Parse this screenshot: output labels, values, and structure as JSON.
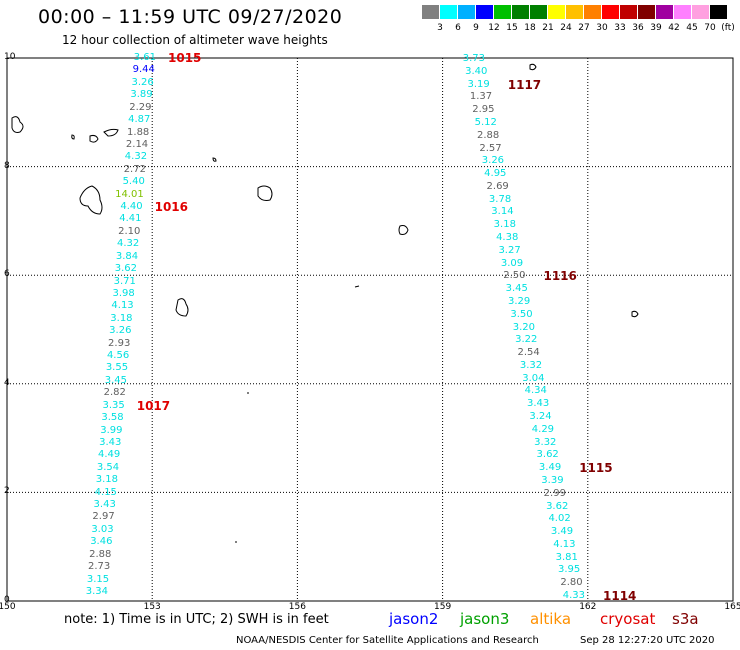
{
  "header": {
    "title": "00:00 – 11:59 UTC 09/27/2020",
    "subtitle": "12 hour collection of altimeter wave heights"
  },
  "color_scale": {
    "colors": [
      "#808080",
      "#00ffff",
      "#00b0ff",
      "#0000ff",
      "#00c000",
      "#008000",
      "#008000",
      "#ffff00",
      "#ffc000",
      "#ff8000",
      "#ff0000",
      "#c00000",
      "#800000",
      "#a000a0",
      "#ff80ff",
      "#ffa0e0",
      "#000000"
    ],
    "labels": [
      "3",
      "6",
      "9",
      "12",
      "15",
      "18",
      "21",
      "24",
      "27",
      "30",
      "33",
      "36",
      "39",
      "42",
      "45",
      "70",
      "(ft)"
    ]
  },
  "axes": {
    "x_ticks": [
      "150",
      "153",
      "156",
      "159",
      "162",
      "165"
    ],
    "y_ticks": [
      "10",
      "8",
      "6",
      "4",
      "2",
      "0"
    ]
  },
  "track_west": {
    "values": [
      "3.61",
      "9.44",
      "3.26",
      "3.89",
      "2.29",
      "4.87",
      "1.88",
      "2.14",
      "4.32",
      "2.72",
      "5.40",
      "14.01",
      "4.40",
      "4.41",
      "2.10",
      "4.32",
      "3.84",
      "3.62",
      "3.71",
      "3.98",
      "4.13",
      "3.18",
      "3.26",
      "2.93",
      "4.56",
      "3.55",
      "3.45",
      "2.82",
      "3.35",
      "3.58",
      "3.99",
      "3.43",
      "4.49",
      "3.54",
      "3.18",
      "4.15",
      "3.43",
      "2.97",
      "3.03",
      "3.46",
      "2.88",
      "2.73",
      "3.15",
      "3.34"
    ],
    "colors": [
      "#00e0e0",
      "#0000ff",
      "#00e0e0",
      "#00e0e0",
      "#606060",
      "#00e0e0",
      "#606060",
      "#606060",
      "#00e0e0",
      "#606060",
      "#00e0e0",
      "#80c000",
      "#00e0e0",
      "#00e0e0",
      "#606060",
      "#00e0e0",
      "#00e0e0",
      "#00e0e0",
      "#00e0e0",
      "#00e0e0",
      "#00e0e0",
      "#00e0e0",
      "#00e0e0",
      "#606060",
      "#00e0e0",
      "#00e0e0",
      "#00e0e0",
      "#606060",
      "#00e0e0",
      "#00e0e0",
      "#00e0e0",
      "#00e0e0",
      "#00e0e0",
      "#00e0e0",
      "#00e0e0",
      "#00e0e0",
      "#00e0e0",
      "#606060",
      "#00e0e0",
      "#00e0e0",
      "#606060",
      "#606060",
      "#00e0e0",
      "#00e0e0"
    ],
    "times": [
      "1015",
      "1016",
      "1017"
    ]
  },
  "track_east": {
    "values": [
      "3.73",
      "3.40",
      "3.19",
      "1.37",
      "2.95",
      "5.12",
      "2.88",
      "2.57",
      "3.26",
      "4.95",
      "2.69",
      "3.78",
      "3.14",
      "3.18",
      "4.38",
      "3.27",
      "3.09",
      "2.50",
      "3.45",
      "3.29",
      "3.50",
      "3.20",
      "3.22",
      "2.54",
      "3.32",
      "3.04",
      "4.34",
      "3.43",
      "3.24",
      "4.29",
      "3.32",
      "3.62",
      "3.49",
      "3.39",
      "2.99",
      "3.62",
      "4.02",
      "3.49",
      "4.13",
      "3.81",
      "3.95",
      "2.80",
      "4.33"
    ],
    "colors": [
      "#00e0e0",
      "#00e0e0",
      "#00e0e0",
      "#606060",
      "#606060",
      "#00e0e0",
      "#606060",
      "#606060",
      "#00e0e0",
      "#00e0e0",
      "#606060",
      "#00e0e0",
      "#00e0e0",
      "#00e0e0",
      "#00e0e0",
      "#00e0e0",
      "#00e0e0",
      "#606060",
      "#00e0e0",
      "#00e0e0",
      "#00e0e0",
      "#00e0e0",
      "#00e0e0",
      "#606060",
      "#00e0e0",
      "#00e0e0",
      "#00e0e0",
      "#00e0e0",
      "#00e0e0",
      "#00e0e0",
      "#00e0e0",
      "#00e0e0",
      "#00e0e0",
      "#00e0e0",
      "#606060",
      "#00e0e0",
      "#00e0e0",
      "#00e0e0",
      "#00e0e0",
      "#00e0e0",
      "#00e0e0",
      "#606060",
      "#00e0e0"
    ],
    "times": [
      "1117",
      "1116",
      "1115",
      "1114"
    ]
  },
  "time_colors": {
    "west": "#e00000",
    "east": "#800000"
  },
  "footer": {
    "note": "note: 1) Time is in UTC; 2) SWH is in feet",
    "satellites": [
      {
        "name": "jason2",
        "color": "#0000ff"
      },
      {
        "name": "jason3",
        "color": "#00a000"
      },
      {
        "name": "altika",
        "color": "#ff9000"
      },
      {
        "name": "cryosat",
        "color": "#e00000"
      },
      {
        "name": "s3a",
        "color": "#800000"
      }
    ],
    "credit": "NOAA/NESDIS Center for Satellite Applications and Research",
    "timestamp": "Sep 28 12:27:20 UTC 2020"
  }
}
